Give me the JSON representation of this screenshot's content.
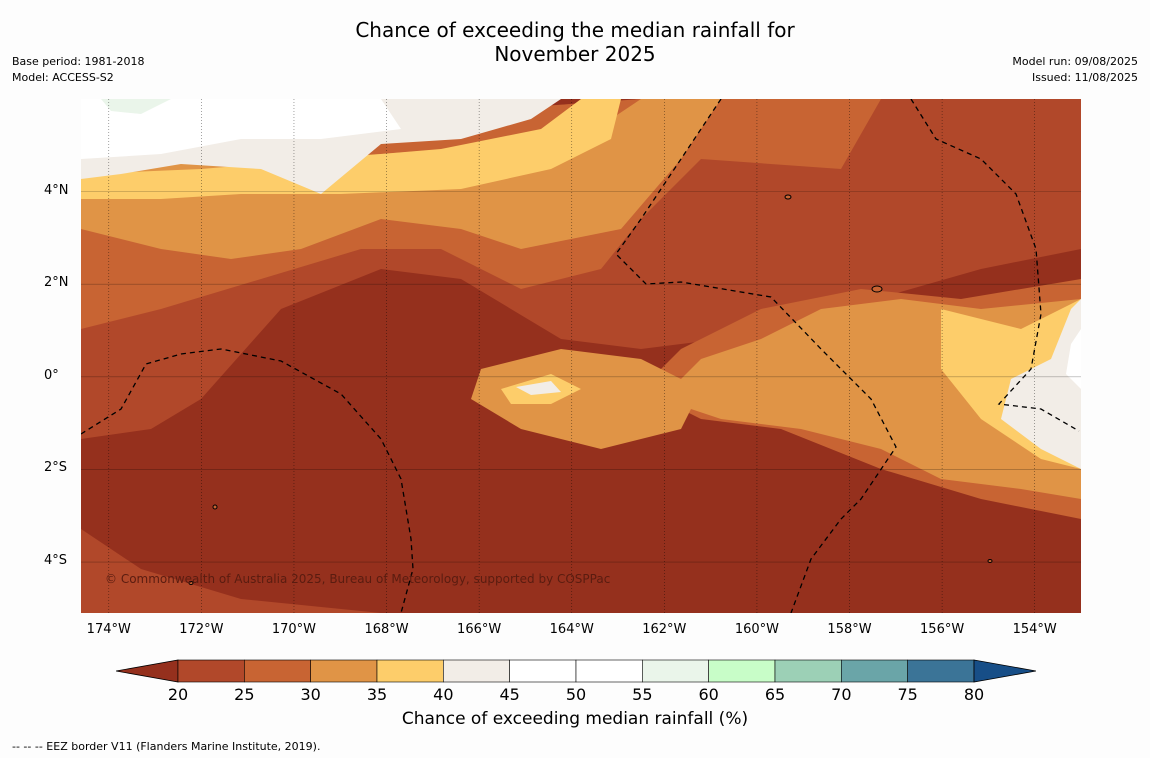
{
  "header": {
    "title_line1": "Chance of exceeding the median rainfall for",
    "title_line2": "November 2025",
    "base_period": "Base period: 1981-2018",
    "model": "Model: ACCESS-S2",
    "model_run": "Model run: 09/08/2025",
    "issued": "Issued: 11/08/2025"
  },
  "map": {
    "copyright": "© Commonwealth of Australia 2025, Bureau of Meteorology, supported by COSPPac",
    "lat_ticks": [
      "4°N",
      "2°N",
      "0°",
      "2°S",
      "4°S"
    ],
    "lon_ticks": [
      "174°W",
      "172°W",
      "170°W",
      "168°W",
      "166°W",
      "164°W",
      "162°W",
      "160°W",
      "158°W",
      "156°W",
      "154°W"
    ],
    "lon_range": [
      -174.6,
      -153.0
    ],
    "lat_range": [
      -5.1,
      6.0
    ],
    "graticule_lons": [
      -174,
      -172,
      -170,
      -168,
      -166,
      -164,
      -162,
      -160,
      -158,
      -156,
      -154
    ],
    "graticule_lats": [
      4,
      2,
      0,
      -2,
      -4
    ],
    "dominant_category": "20-25"
  },
  "colorbar": {
    "label": "Chance of exceeding median rainfall (%)",
    "ticks": [
      "20",
      "25",
      "30",
      "35",
      "40",
      "45",
      "50",
      "55",
      "60",
      "65",
      "70",
      "75",
      "80"
    ],
    "colors": [
      "#95301d",
      "#b1482a",
      "#c86433",
      "#e09446",
      "#fdcd6a",
      "#f2ede7",
      "#ffffff",
      "#ffffff",
      "#eaf5ea",
      "#c8fdc8",
      "#9cd0b6",
      "#6aa5a8",
      "#3b7497",
      "#174e87"
    ]
  },
  "footnote": "--  --  -- EEZ border V11 (Flanders Marine Institute, 2019)."
}
